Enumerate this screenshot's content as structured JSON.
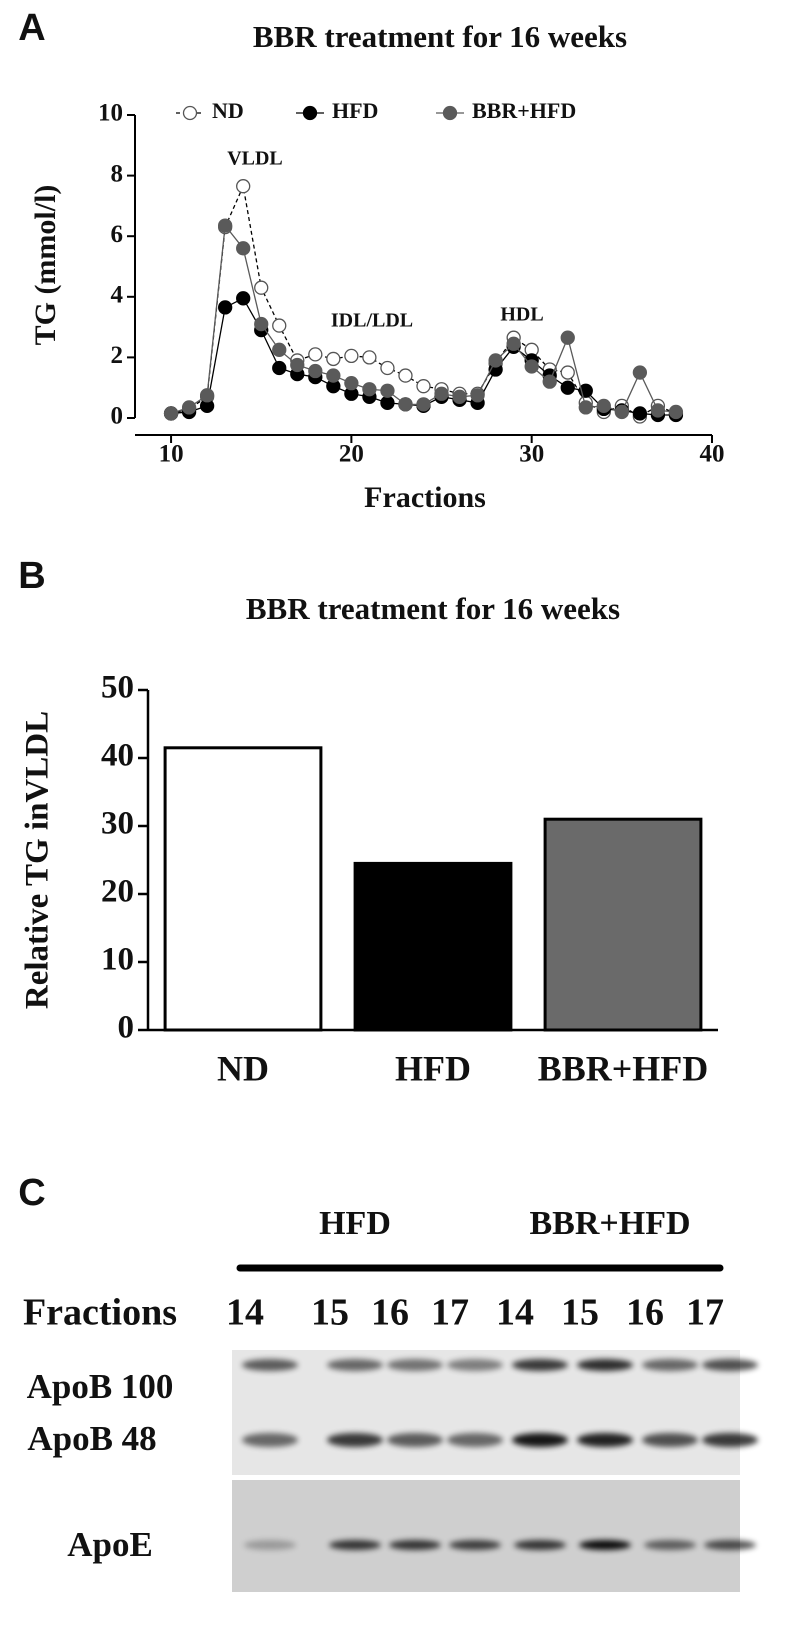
{
  "chart_data": [
    {
      "type": "line",
      "panel": "A",
      "title": "BBR treatment for 16 weeks",
      "xlabel": "Fractions",
      "ylabel": "TG (mmol/l)",
      "x": [
        10,
        11,
        12,
        13,
        14,
        15,
        16,
        17,
        18,
        19,
        20,
        21,
        22,
        23,
        24,
        25,
        26,
        27,
        28,
        29,
        30,
        31,
        32,
        33,
        34,
        35,
        36,
        37,
        38
      ],
      "series": [
        {
          "name": "ND",
          "color": "#000000",
          "marker": "open",
          "linestyle": "dashed",
          "values": [
            0.15,
            0.3,
            0.7,
            6.3,
            7.65,
            4.3,
            3.05,
            1.9,
            2.1,
            1.95,
            2.05,
            2.0,
            1.65,
            1.4,
            1.05,
            0.95,
            0.8,
            0.8,
            1.8,
            2.65,
            2.25,
            1.6,
            1.5,
            0.5,
            0.2,
            0.4,
            0.05,
            0.4,
            0.15
          ]
        },
        {
          "name": "HFD",
          "color": "#000000",
          "marker": "filled",
          "linestyle": "solid",
          "values": [
            0.15,
            0.2,
            0.4,
            3.65,
            3.95,
            2.9,
            1.65,
            1.45,
            1.35,
            1.05,
            0.8,
            0.7,
            0.5,
            0.45,
            0.4,
            0.7,
            0.6,
            0.5,
            1.6,
            2.35,
            1.9,
            1.4,
            1.0,
            0.9,
            0.3,
            0.25,
            0.15,
            0.1,
            0.1
          ]
        },
        {
          "name": "BBR+HFD",
          "color": "#5a5a5a",
          "marker": "filled",
          "linestyle": "solid",
          "values": [
            0.15,
            0.35,
            0.75,
            6.35,
            5.6,
            3.1,
            2.25,
            1.75,
            1.55,
            1.4,
            1.15,
            0.95,
            0.9,
            0.45,
            0.45,
            0.8,
            0.7,
            0.75,
            1.9,
            2.45,
            1.7,
            1.2,
            2.65,
            0.35,
            0.4,
            0.2,
            1.5,
            0.25,
            0.2
          ]
        }
      ],
      "annotations": [
        "VLDL",
        "IDL/LDL",
        "HDL"
      ],
      "xlim": [
        8,
        40
      ],
      "xticks": [
        10,
        20,
        30,
        40
      ],
      "ylim": [
        0,
        10
      ],
      "yticks": [
        0,
        2,
        4,
        6,
        8,
        10
      ],
      "legend": "top"
    },
    {
      "type": "bar",
      "panel": "B",
      "title": "BBR treatment for 16 weeks",
      "ylabel": "Relative TG inVLDL",
      "categories": [
        "ND",
        "HFD",
        "BBR+HFD"
      ],
      "values": [
        41.5,
        24.5,
        31
      ],
      "colors": [
        "#ffffff",
        "#000000",
        "#6a6a6a"
      ],
      "ylim": [
        0,
        50
      ],
      "yticks": [
        0,
        10,
        20,
        30,
        40,
        50
      ]
    }
  ],
  "blot": {
    "panel": "C",
    "groups": [
      "HFD",
      "BBR+HFD"
    ],
    "fractions_label": "Fractions",
    "lanes": [
      14,
      15,
      16,
      17,
      14,
      15,
      16,
      17
    ],
    "rows": [
      "ApoB 100",
      "ApoB 48",
      "ApoE"
    ]
  }
}
